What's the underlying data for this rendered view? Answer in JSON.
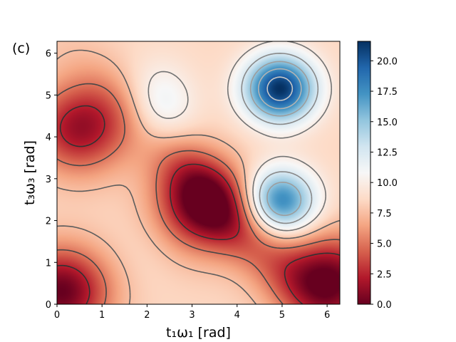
{
  "chart_data": {
    "type": "heatmap",
    "panel_label": "(c)",
    "xlabel": "t₁ω₁ [rad]",
    "ylabel": "t₃ω₃ [rad]",
    "xlim": [
      0,
      6.283
    ],
    "ylim": [
      0,
      6.283
    ],
    "x_ticks": [
      0,
      1,
      2,
      3,
      4,
      5,
      6
    ],
    "y_ticks": [
      0,
      1,
      2,
      3,
      4,
      5,
      6
    ],
    "colorbar": {
      "colormap": "RdBu",
      "range": [
        0.0,
        21.6
      ],
      "ticks": [
        "0.0",
        "2.5",
        "5.0",
        "7.5",
        "10.0",
        "12.5",
        "15.0",
        "17.5",
        "20.0"
      ]
    },
    "features": [
      {
        "kind": "maximum",
        "x": 4.95,
        "y": 5.15,
        "value": 21.6
      },
      {
        "kind": "maximum",
        "x": 4.95,
        "y": 2.45,
        "value": 18.5
      },
      {
        "kind": "minimum",
        "x": 0.1,
        "y": 0.3,
        "value": 0.0
      },
      {
        "kind": "minimum",
        "x": 6.1,
        "y": 0.6,
        "value": 0.5
      },
      {
        "kind": "minimum",
        "x": 3.2,
        "y": 2.3,
        "value": 1.5
      },
      {
        "kind": "minimum",
        "x": 0.5,
        "y": 4.2,
        "value": 1.5
      },
      {
        "kind": "local_peak",
        "x": 2.0,
        "y": 1.5,
        "value": 9.0
      },
      {
        "kind": "local_peak",
        "x": 2.25,
        "y": 4.6,
        "value": 12.5
      }
    ],
    "contour_levels": [
      2.5,
      5.0,
      7.5,
      10.0,
      12.5,
      15.0,
      17.5,
      20.0
    ],
    "grid": false
  }
}
